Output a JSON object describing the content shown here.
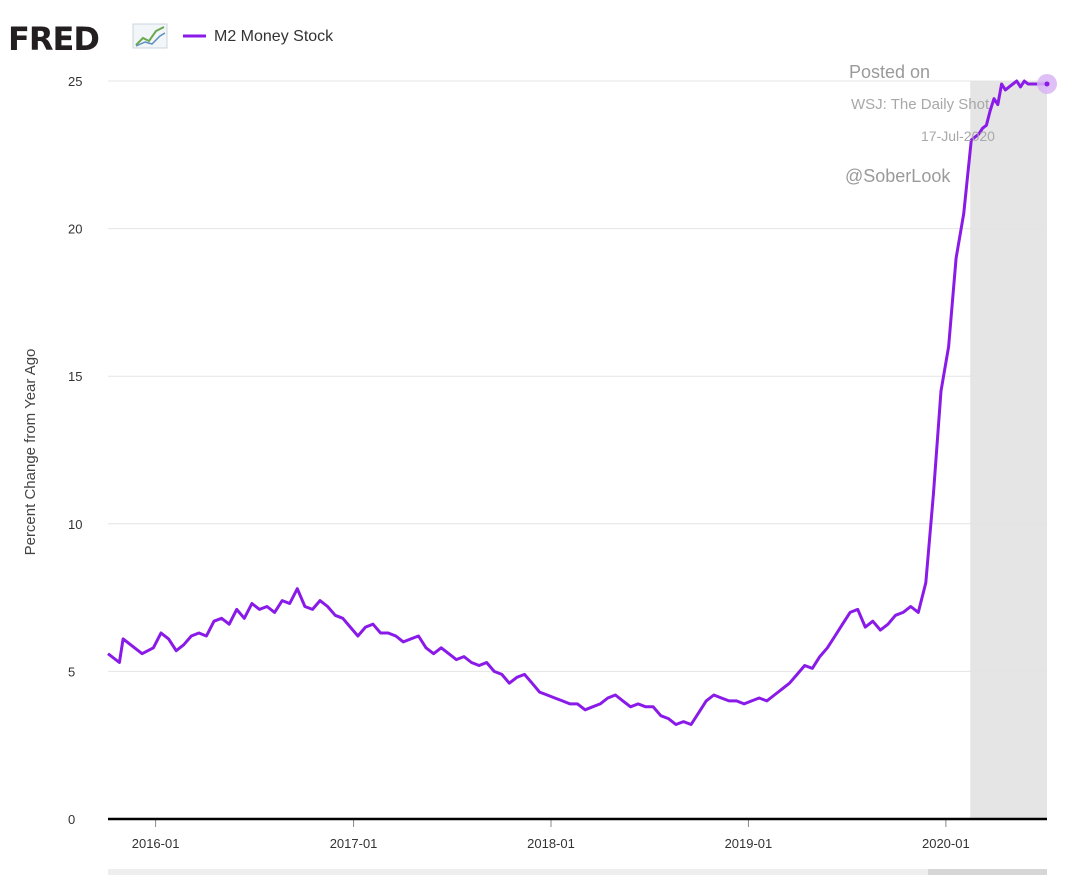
{
  "brand": {
    "logo": "FRED"
  },
  "watermark": {
    "line1": "Posted on",
    "line2": "WSJ: The Daily Shot",
    "line3": "17-Jul-2020",
    "line4": "@SoberLook"
  },
  "colors": {
    "series": "#8a1ae8",
    "recession": "#e5e5e5",
    "grid": "#e4e4e4",
    "axis": "#000000",
    "marker_halo": "#d9b5f5"
  },
  "chart_data": {
    "type": "line",
    "title": "",
    "xlabel": "",
    "ylabel": "Percent Change from Year Ago",
    "ylim": [
      0,
      25
    ],
    "xlim": [
      "2015-10-05",
      "2020-07-06"
    ],
    "yticks": [
      "0",
      "5",
      "10",
      "15",
      "20",
      "25"
    ],
    "xticks": [
      "2016-01",
      "2017-01",
      "2018-01",
      "2019-01",
      "2020-01"
    ],
    "grid": true,
    "legend": "top-left",
    "recession_shading": [
      {
        "start": "2020-02-15",
        "end": "2020-07-06"
      }
    ],
    "series": [
      {
        "name": "M2 Money Stock",
        "x": [
          "2015-10-05",
          "2015-10-26",
          "2015-11-02",
          "2015-11-16",
          "2015-12-07",
          "2015-12-28",
          "2016-01-11",
          "2016-01-25",
          "2016-02-08",
          "2016-02-22",
          "2016-03-07",
          "2016-03-21",
          "2016-04-04",
          "2016-04-18",
          "2016-05-02",
          "2016-05-16",
          "2016-05-30",
          "2016-06-13",
          "2016-06-27",
          "2016-07-11",
          "2016-07-25",
          "2016-08-08",
          "2016-08-22",
          "2016-09-05",
          "2016-09-19",
          "2016-10-03",
          "2016-10-17",
          "2016-10-31",
          "2016-11-14",
          "2016-11-28",
          "2016-12-12",
          "2016-12-26",
          "2017-01-09",
          "2017-01-23",
          "2017-02-06",
          "2017-02-20",
          "2017-03-06",
          "2017-03-20",
          "2017-04-03",
          "2017-04-17",
          "2017-05-01",
          "2017-05-15",
          "2017-05-29",
          "2017-06-12",
          "2017-06-26",
          "2017-07-10",
          "2017-07-24",
          "2017-08-07",
          "2017-08-21",
          "2017-09-04",
          "2017-09-18",
          "2017-10-02",
          "2017-10-16",
          "2017-10-30",
          "2017-11-13",
          "2017-11-27",
          "2017-12-11",
          "2017-12-25",
          "2018-01-08",
          "2018-01-22",
          "2018-02-05",
          "2018-02-19",
          "2018-03-05",
          "2018-03-19",
          "2018-04-02",
          "2018-04-16",
          "2018-04-30",
          "2018-05-14",
          "2018-05-28",
          "2018-06-11",
          "2018-06-25",
          "2018-07-09",
          "2018-07-23",
          "2018-08-06",
          "2018-08-20",
          "2018-09-03",
          "2018-09-17",
          "2018-10-01",
          "2018-10-15",
          "2018-10-29",
          "2018-11-12",
          "2018-11-26",
          "2018-12-10",
          "2018-12-24",
          "2019-01-07",
          "2019-01-21",
          "2019-02-04",
          "2019-02-18",
          "2019-03-04",
          "2019-03-18",
          "2019-04-01",
          "2019-04-15",
          "2019-04-29",
          "2019-05-13",
          "2019-05-27",
          "2019-06-10",
          "2019-06-24",
          "2019-07-08",
          "2019-07-22",
          "2019-08-05",
          "2019-08-19",
          "2019-09-02",
          "2019-09-16",
          "2019-09-30",
          "2019-10-14",
          "2019-10-28",
          "2019-11-11",
          "2019-11-25",
          "2019-12-09",
          "2019-12-23",
          "2020-01-06",
          "2020-01-20",
          "2020-02-03",
          "2020-02-17",
          "2020-03-02",
          "2020-03-09",
          "2020-03-16",
          "2020-03-23",
          "2020-03-30",
          "2020-04-06",
          "2020-04-13",
          "2020-04-20",
          "2020-04-27",
          "2020-05-04",
          "2020-05-11",
          "2020-05-18",
          "2020-05-25",
          "2020-06-01",
          "2020-06-08",
          "2020-06-15",
          "2020-06-22",
          "2020-06-29",
          "2020-07-06"
        ],
        "y": [
          5.6,
          5.3,
          6.1,
          5.9,
          5.6,
          5.8,
          6.3,
          6.1,
          5.7,
          5.9,
          6.2,
          6.3,
          6.2,
          6.7,
          6.8,
          6.6,
          7.1,
          6.8,
          7.3,
          7.1,
          7.2,
          7.0,
          7.4,
          7.3,
          7.8,
          7.2,
          7.1,
          7.4,
          7.2,
          6.9,
          6.8,
          6.5,
          6.2,
          6.5,
          6.6,
          6.3,
          6.3,
          6.2,
          6.0,
          6.1,
          6.2,
          5.8,
          5.6,
          5.8,
          5.6,
          5.4,
          5.5,
          5.3,
          5.2,
          5.3,
          5.0,
          4.9,
          4.6,
          4.8,
          4.9,
          4.6,
          4.3,
          4.2,
          4.1,
          4.0,
          3.9,
          3.9,
          3.7,
          3.8,
          3.9,
          4.1,
          4.2,
          4.0,
          3.8,
          3.9,
          3.8,
          3.8,
          3.5,
          3.4,
          3.2,
          3.3,
          3.2,
          3.6,
          4.0,
          4.2,
          4.1,
          4.0,
          4.0,
          3.9,
          4.0,
          4.1,
          4.0,
          4.2,
          4.4,
          4.6,
          4.9,
          5.2,
          5.1,
          5.5,
          5.8,
          6.2,
          6.6,
          7.0,
          7.1,
          6.5,
          6.7,
          6.4,
          6.6,
          6.9,
          7.0,
          7.2,
          7.0,
          8.0,
          11.0,
          14.5,
          16.0,
          19.0,
          20.5,
          23.0,
          23.2,
          23.4,
          23.5,
          24.0,
          24.4,
          24.2,
          24.9,
          24.7,
          24.8,
          24.9,
          25.0,
          24.8,
          25.0,
          24.9,
          24.9,
          24.9,
          24.9,
          24.9,
          24.9
        ]
      }
    ]
  }
}
